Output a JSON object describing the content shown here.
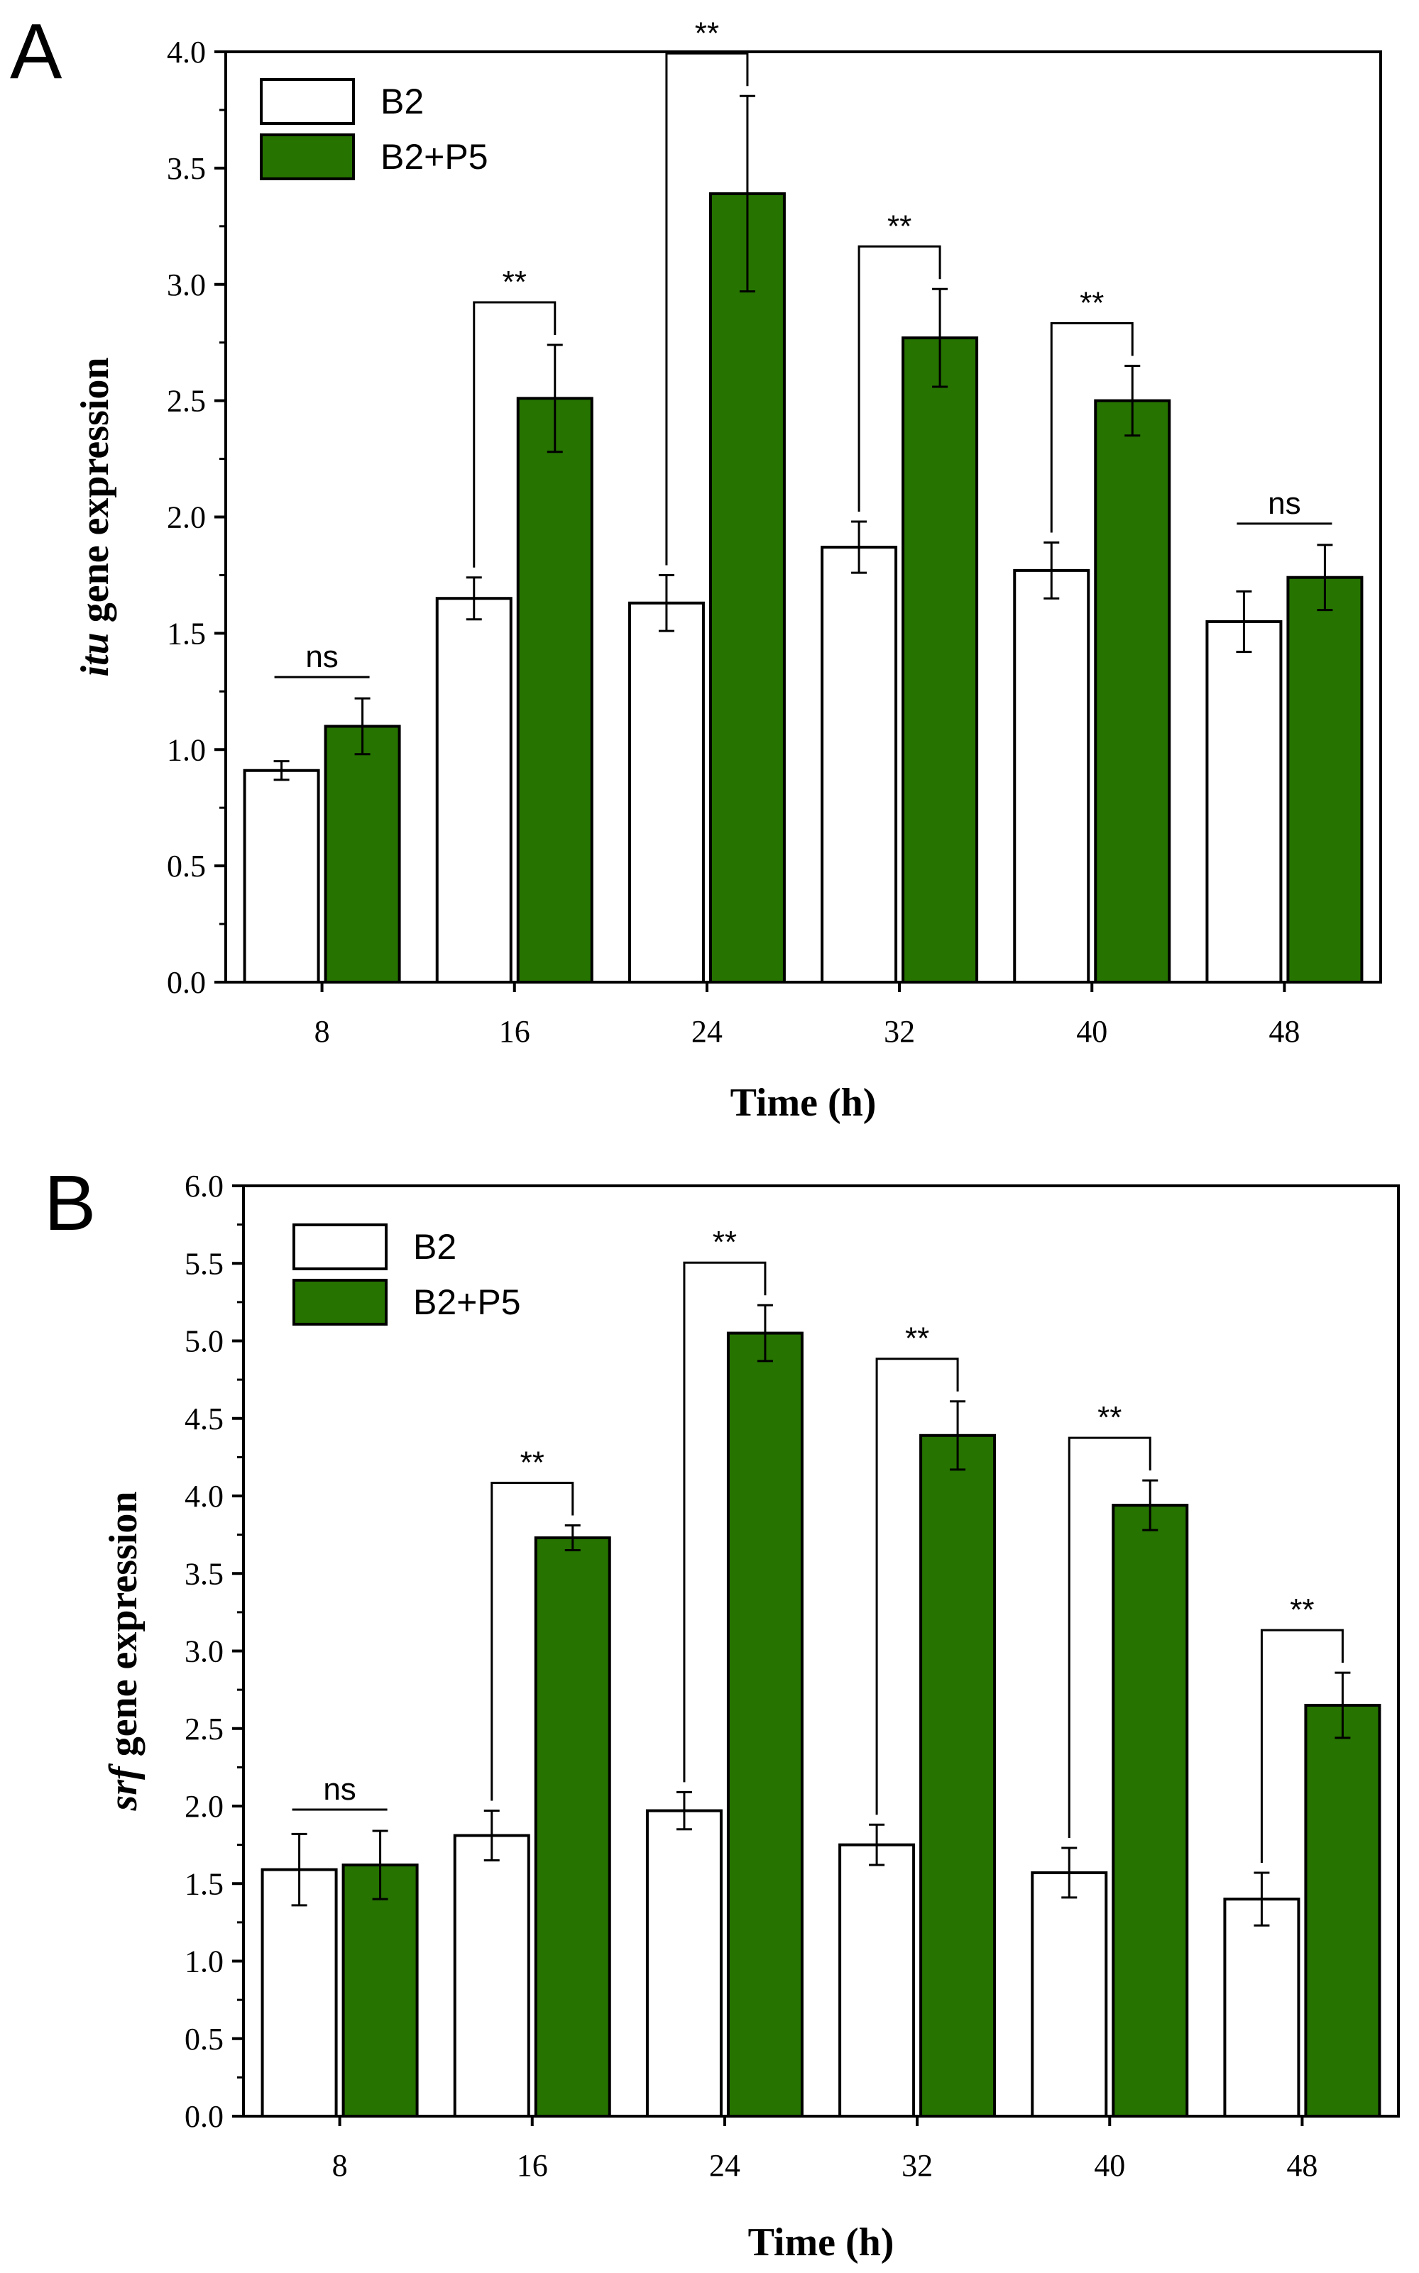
{
  "chart_data": [
    {
      "panel": "A",
      "type": "bar",
      "categories": [
        "8",
        "16",
        "24",
        "32",
        "40",
        "48"
      ],
      "series": [
        {
          "name": "B2",
          "values": [
            0.91,
            1.65,
            1.63,
            1.87,
            1.77,
            1.55
          ],
          "errors": [
            0.04,
            0.09,
            0.12,
            0.11,
            0.12,
            0.13
          ],
          "color": "#ffffff"
        },
        {
          "name": "B2+P5",
          "values": [
            1.1,
            2.51,
            3.39,
            2.77,
            2.5,
            1.74
          ],
          "errors": [
            0.12,
            0.23,
            0.42,
            0.21,
            0.15,
            0.14
          ],
          "color": "#267300"
        }
      ],
      "significance": [
        "ns",
        "**",
        "**",
        "**",
        "**",
        "ns"
      ],
      "xlabel": "Time (h)",
      "ylabel_italic": "itu",
      "ylabel_rest": " gene expression",
      "ylim": [
        0,
        4.0
      ],
      "yticks": [
        "0.0",
        "0.5",
        "1.0",
        "1.5",
        "2.0",
        "2.5",
        "3.0",
        "3.5",
        "4.0"
      ],
      "legend_position": "top-left",
      "grid": false
    },
    {
      "panel": "B",
      "type": "bar",
      "categories": [
        "8",
        "16",
        "24",
        "32",
        "40",
        "48"
      ],
      "series": [
        {
          "name": "B2",
          "values": [
            1.59,
            1.81,
            1.97,
            1.75,
            1.57,
            1.4
          ],
          "errors": [
            0.23,
            0.16,
            0.12,
            0.13,
            0.16,
            0.17
          ],
          "color": "#ffffff"
        },
        {
          "name": "B2+P5",
          "values": [
            1.62,
            3.73,
            5.05,
            4.39,
            3.94,
            2.65
          ],
          "errors": [
            0.22,
            0.08,
            0.18,
            0.22,
            0.16,
            0.21
          ],
          "color": "#267300"
        }
      ],
      "significance": [
        "ns",
        "**",
        "**",
        "**",
        "**",
        "**"
      ],
      "xlabel": "Time (h)",
      "ylabel_italic": "srf",
      "ylabel_rest": " gene expression",
      "ylim": [
        0,
        6.0
      ],
      "yticks": [
        "0.0",
        "0.5",
        "1.0",
        "1.5",
        "2.0",
        "2.5",
        "3.0",
        "3.5",
        "4.0",
        "4.5",
        "5.0",
        "5.5",
        "6.0"
      ],
      "legend_position": "top-left",
      "grid": false
    }
  ]
}
